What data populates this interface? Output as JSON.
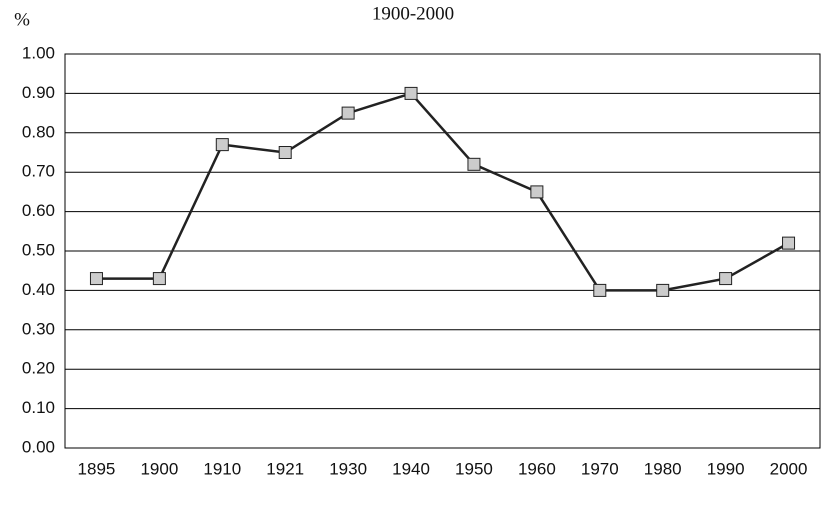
{
  "chart_data": {
    "type": "line",
    "title": "1900-2000",
    "y_label": "%",
    "categories": [
      "1895",
      "1900",
      "1910",
      "1921",
      "1930",
      "1940",
      "1950",
      "1960",
      "1970",
      "1980",
      "1990",
      "2000"
    ],
    "values": [
      0.43,
      0.43,
      0.77,
      0.75,
      0.85,
      0.9,
      0.72,
      0.65,
      0.4,
      0.4,
      0.43,
      0.52
    ],
    "color": "#222222",
    "marker_color": "#cccccc",
    "ylim": [
      0,
      1
    ],
    "yticks": [
      {
        "value": 0,
        "label": "0.00"
      },
      {
        "value": 0.1,
        "label": "0.10"
      },
      {
        "value": 0.2,
        "label": "0.20"
      },
      {
        "value": 0.3,
        "label": "0.30"
      },
      {
        "value": 0.4,
        "label": "0.40"
      },
      {
        "value": 0.5,
        "label": "0.50"
      },
      {
        "value": 0.6,
        "label": "0.60"
      },
      {
        "value": 0.7,
        "label": "0.70"
      },
      {
        "value": 0.8,
        "label": "0.80"
      },
      {
        "value": 0.9,
        "label": "0.90"
      },
      {
        "value": 1,
        "label": "1.00"
      }
    ],
    "grid": true
  }
}
